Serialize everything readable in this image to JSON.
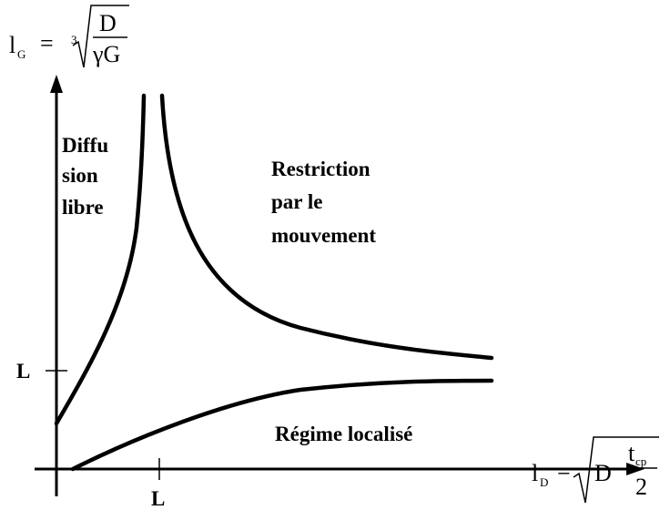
{
  "y_axis_label": {
    "symbol": "l",
    "subscript": "G",
    "equals": "=",
    "root_index": "3",
    "numerator": "D",
    "denominator": "γG"
  },
  "x_axis_label": {
    "symbol": "l",
    "subscript": "D",
    "equals": "=",
    "factor": "D",
    "numerator": "t",
    "numerator_subscript": "cp",
    "denominator": "2"
  },
  "y_tick": "L",
  "x_tick": "L",
  "regions": {
    "free_diffusion": [
      "Diffu",
      "sion",
      "libre"
    ],
    "motion_restriction": [
      "Restriction",
      "par le",
      "mouvement"
    ],
    "localized": "Régime localisé"
  }
}
